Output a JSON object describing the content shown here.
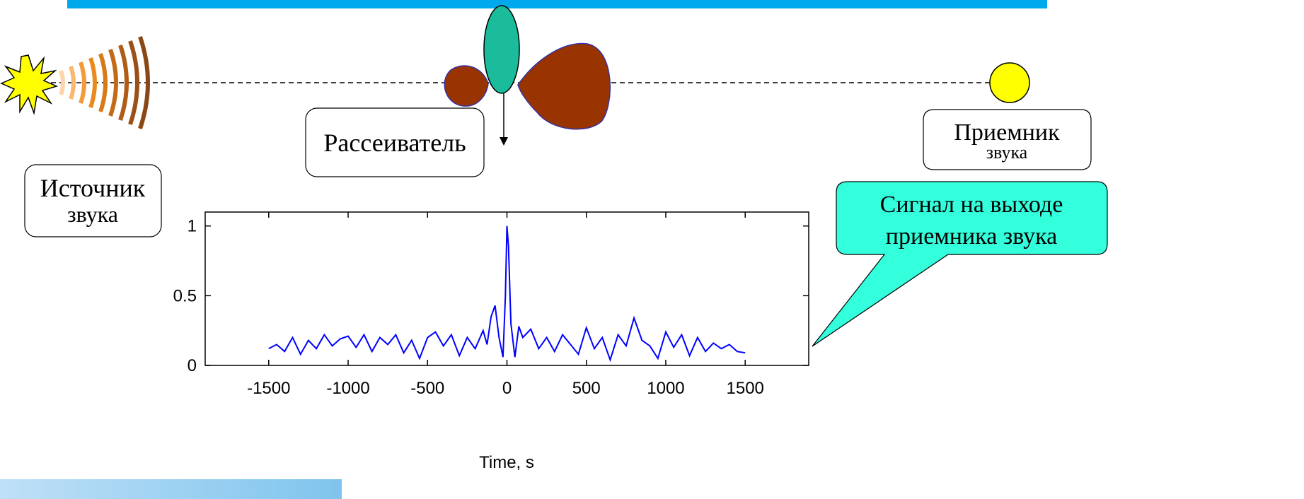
{
  "source": {
    "lines": [
      "Источник",
      "звука"
    ]
  },
  "scatterer": {
    "label": "Рассеиватель"
  },
  "receiver": {
    "lines": [
      "Приемник",
      "звука"
    ]
  },
  "callout": {
    "lines": [
      "Сигнал на выходе",
      "приемника звука"
    ]
  },
  "chart_data": {
    "type": "line",
    "xlabel": "Time, s",
    "color": "#0000ff",
    "x": [
      -1500,
      -1450,
      -1400,
      -1350,
      -1300,
      -1250,
      -1200,
      -1150,
      -1100,
      -1050,
      -1000,
      -950,
      -900,
      -850,
      -800,
      -750,
      -700,
      -650,
      -600,
      -550,
      -500,
      -450,
      -400,
      -350,
      -300,
      -250,
      -200,
      -150,
      -125,
      -100,
      -75,
      -50,
      -25,
      -10,
      0,
      10,
      25,
      50,
      75,
      100,
      150,
      200,
      250,
      300,
      350,
      400,
      450,
      500,
      550,
      600,
      650,
      700,
      750,
      800,
      850,
      900,
      950,
      1000,
      1050,
      1100,
      1150,
      1200,
      1250,
      1300,
      1350,
      1400,
      1450,
      1500
    ],
    "values": [
      0.12,
      0.15,
      0.1,
      0.2,
      0.08,
      0.18,
      0.12,
      0.22,
      0.14,
      0.19,
      0.21,
      0.13,
      0.22,
      0.1,
      0.2,
      0.15,
      0.22,
      0.09,
      0.18,
      0.05,
      0.2,
      0.24,
      0.14,
      0.22,
      0.07,
      0.2,
      0.12,
      0.25,
      0.15,
      0.35,
      0.43,
      0.2,
      0.06,
      0.5,
      1.0,
      0.85,
      0.3,
      0.06,
      0.28,
      0.2,
      0.26,
      0.12,
      0.2,
      0.1,
      0.22,
      0.15,
      0.08,
      0.27,
      0.12,
      0.2,
      0.04,
      0.22,
      0.14,
      0.34,
      0.18,
      0.14,
      0.05,
      0.24,
      0.13,
      0.22,
      0.07,
      0.2,
      0.1,
      0.16,
      0.12,
      0.15,
      0.1,
      0.09
    ],
    "xlim": [
      -1900,
      1900
    ],
    "ylim": [
      0,
      1.1
    ],
    "xticks": [
      -1500,
      -1000,
      -500,
      0,
      500,
      1000,
      1500
    ],
    "yticks": [
      0,
      0.5,
      1
    ]
  }
}
